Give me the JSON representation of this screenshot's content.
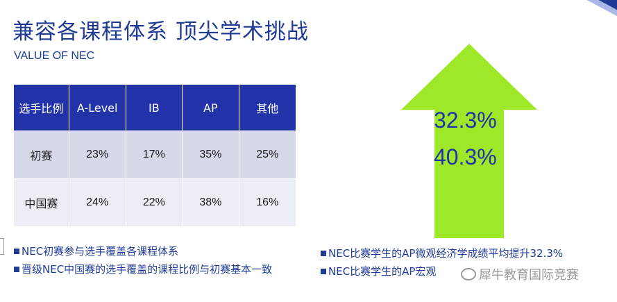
{
  "slide": {
    "title": "兼容各课程体系 顶尖学术挑战",
    "subtitle": "VALUE OF NEC"
  },
  "table": {
    "headers": [
      "选手比例",
      "A-Level",
      "IB",
      "AP",
      "其他"
    ],
    "rows": [
      {
        "label": "初赛",
        "values": [
          "23%",
          "17%",
          "35%",
          "25%"
        ]
      },
      {
        "label": "中国赛",
        "values": [
          "24%",
          "22%",
          "38%",
          "16%"
        ]
      }
    ]
  },
  "arrow": {
    "color": "#9ee82a",
    "values": [
      "32.3%",
      "40.3%"
    ]
  },
  "bullets_left": [
    "NEC初赛参与选手覆盖各课程体系",
    "晋级NEC中国赛的选手覆盖的课程比例与初赛基本一致"
  ],
  "bullets_right": [
    "NEC比赛学生的AP微观经济学成绩平均提升32.3%",
    "NEC比赛学生的AP宏观"
  ],
  "watermark": {
    "text": "犀牛教育国际竞赛",
    "icon": "wechat-icon"
  },
  "colors": {
    "primary": "#1f3b94",
    "header_bg": "#2233aa",
    "row_bg_1": "#d5d9e8",
    "row_bg_2": "#eceef5",
    "arrow_green": "#9ee82a"
  }
}
